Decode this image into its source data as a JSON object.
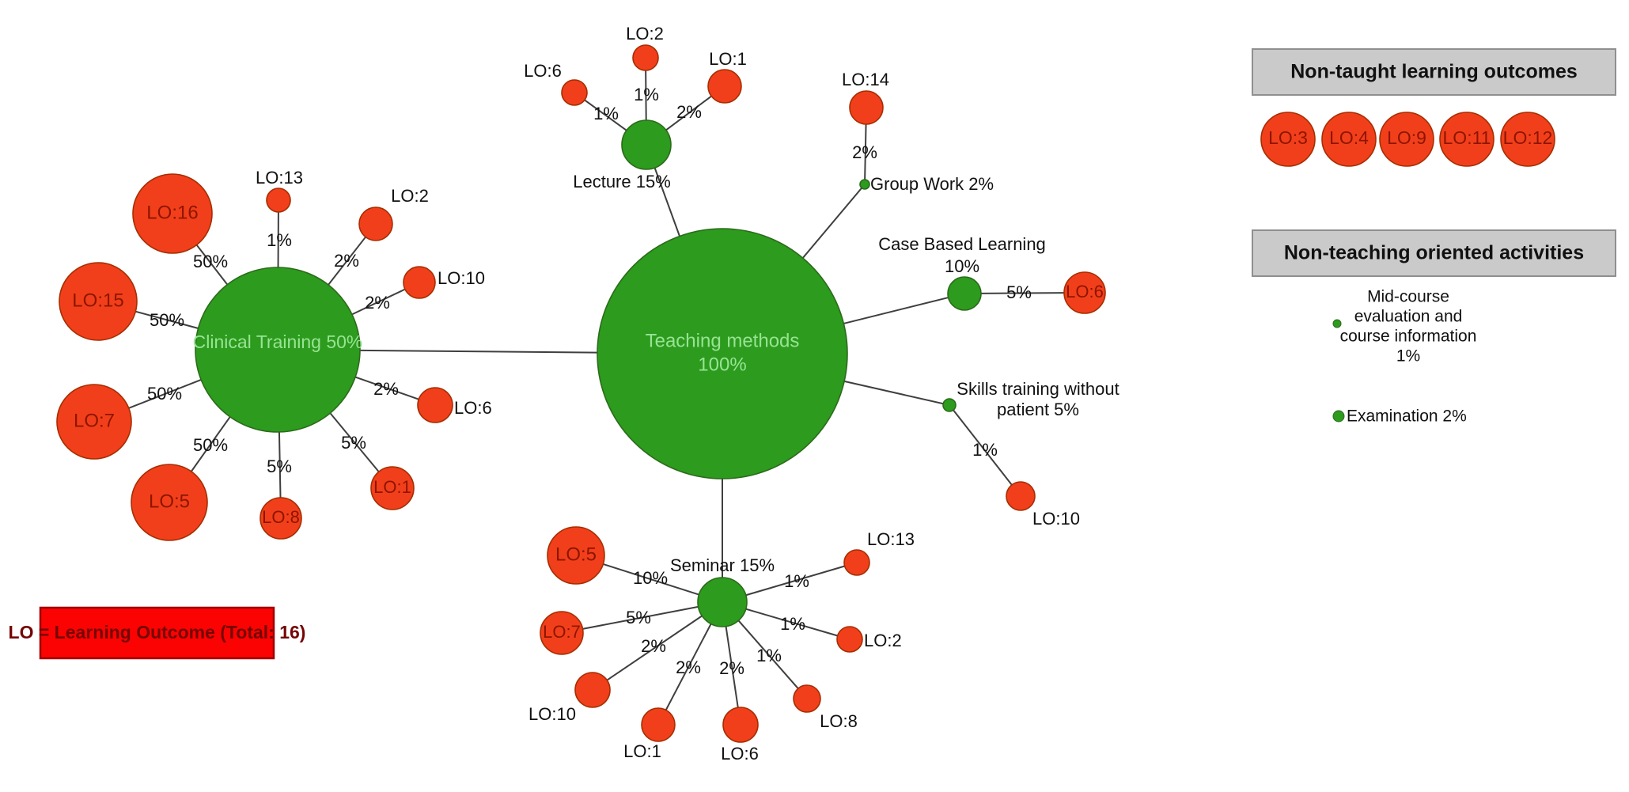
{
  "figure": {
    "legend_note": "LO = Learning Outcome (Total: 16)",
    "root": {
      "title": "Teaching methods",
      "pct": "100%"
    },
    "methods": [
      {
        "key": "clinical",
        "label": "Clinical Training 50%",
        "links": [
          {
            "lo": "LO:16",
            "pct": "50%"
          },
          {
            "lo": "LO:13",
            "pct": "1%"
          },
          {
            "lo": "LO:2",
            "pct": "2%"
          },
          {
            "lo": "LO:10",
            "pct": "2%"
          },
          {
            "lo": "LO:6",
            "pct": "2%"
          },
          {
            "lo": "LO:1",
            "pct": "5%"
          },
          {
            "lo": "LO:8",
            "pct": "5%"
          },
          {
            "lo": "LO:5",
            "pct": "50%"
          },
          {
            "lo": "LO:7",
            "pct": "50%"
          },
          {
            "lo": "LO:15",
            "pct": "50%"
          }
        ]
      },
      {
        "key": "lecture",
        "label": "Lecture 15%",
        "links": [
          {
            "lo": "LO:6",
            "pct": "1%"
          },
          {
            "lo": "LO:2",
            "pct": "1%"
          },
          {
            "lo": "LO:1",
            "pct": "2%"
          }
        ]
      },
      {
        "key": "groupwork",
        "label": "Group Work 2%",
        "links": [
          {
            "lo": "LO:14",
            "pct": "2%"
          }
        ]
      },
      {
        "key": "cbl",
        "label": "Case Based Learning",
        "label2": "10%",
        "links": [
          {
            "lo": "LO:6",
            "pct": "5%"
          }
        ]
      },
      {
        "key": "skills",
        "label": "Skills training without",
        "label2": "patient 5%",
        "links": [
          {
            "lo": "LO:10",
            "pct": "1%"
          }
        ]
      },
      {
        "key": "seminar",
        "label": "Seminar 15%",
        "links": [
          {
            "lo": "LO:5",
            "pct": "10%"
          },
          {
            "lo": "LO:7",
            "pct": "5%"
          },
          {
            "lo": "LO:10",
            "pct": "2%"
          },
          {
            "lo": "LO:1",
            "pct": "2%"
          },
          {
            "lo": "LO:6",
            "pct": "2%"
          },
          {
            "lo": "LO:8",
            "pct": "1%"
          },
          {
            "lo": "LO:2",
            "pct": "1%"
          },
          {
            "lo": "LO:13",
            "pct": "1%"
          }
        ]
      }
    ],
    "panels": {
      "non_taught": {
        "title": "Non-taught learning outcomes",
        "outcomes": [
          "LO:3",
          "LO:4",
          "LO:9",
          "LO:11",
          "LO:12"
        ]
      },
      "non_teaching": {
        "title": "Non-teaching oriented activities",
        "activities": [
          {
            "label_lines": [
              "Mid-course",
              "evaluation and",
              "course information",
              "1%"
            ]
          },
          {
            "label_lines": [
              "Examination 2%"
            ]
          }
        ]
      }
    },
    "colors": {
      "method_green": "#2d9b1e",
      "method_green_stroke": "#2b6b1a",
      "outcome_red": "#f23f1b",
      "outcome_red_stroke": "#a52e00",
      "method_label": "#97e493",
      "outcome_label": "#8c1500",
      "edge": "#3f3f3f",
      "text": "#111111",
      "panel_fill": "#cacaca",
      "panel_stroke": "#8f8f8f",
      "legend_fill": "#fa0302",
      "legend_stroke": "#a00000",
      "legend_text": "#750505"
    }
  }
}
